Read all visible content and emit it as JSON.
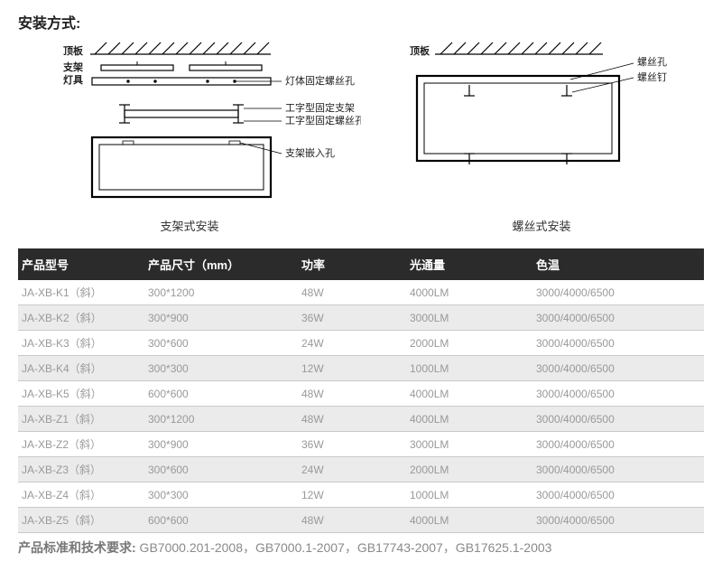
{
  "title": "安装方式:",
  "diagram1": {
    "caption": "支架式安装",
    "labels": {
      "top": "顶板",
      "bracket": "支架",
      "lamp": "灯具",
      "p1": "灯体固定螺丝孔",
      "p2": "工字型固定支架",
      "p3": "工字型固定螺丝孔",
      "p4": "支架嵌入孔"
    }
  },
  "diagram2": {
    "caption": "螺丝式安装",
    "labels": {
      "top": "顶板",
      "p1": "螺丝孔",
      "p2": "螺丝钉"
    }
  },
  "table": {
    "headers": [
      "产品型号",
      "产品尺寸（mm）",
      "功率",
      "光通量",
      "色温"
    ],
    "rows": [
      [
        "JA-XB-K1（斜）",
        "300*1200",
        "48W",
        "4000LM",
        "3000/4000/6500"
      ],
      [
        "JA-XB-K2（斜）",
        "300*900",
        "36W",
        "3000LM",
        "3000/4000/6500"
      ],
      [
        "JA-XB-K3（斜）",
        "300*600",
        "24W",
        "2000LM",
        "3000/4000/6500"
      ],
      [
        "JA-XB-K4（斜）",
        "300*300",
        "12W",
        "1000LM",
        "3000/4000/6500"
      ],
      [
        "JA-XB-K5（斜）",
        "600*600",
        "48W",
        "4000LM",
        "3000/4000/6500"
      ],
      [
        "JA-XB-Z1（斜）",
        "300*1200",
        "48W",
        "4000LM",
        "3000/4000/6500"
      ],
      [
        "JA-XB-Z2（斜）",
        "300*900",
        "36W",
        "3000LM",
        "3000/4000/6500"
      ],
      [
        "JA-XB-Z3（斜）",
        "300*600",
        "24W",
        "2000LM",
        "3000/4000/6500"
      ],
      [
        "JA-XB-Z4（斜）",
        "300*300",
        "12W",
        "1000LM",
        "3000/4000/6500"
      ],
      [
        "JA-XB-Z5（斜）",
        "600*600",
        "48W",
        "4000LM",
        "3000/4000/6500"
      ]
    ]
  },
  "footer": {
    "label": "产品标准和技术要求:",
    "text": " GB7000.201-2008，GB7000.1-2007，GB17743-2007，GB17625.1-2003"
  },
  "style": {
    "header_bg": "#2b2b2b",
    "header_fg": "#ffffff",
    "row_odd_bg": "#ffffff",
    "row_even_bg": "#ebebeb",
    "cell_color": "#999999",
    "border_color": "#c9c9c9",
    "stroke": "#000000"
  }
}
